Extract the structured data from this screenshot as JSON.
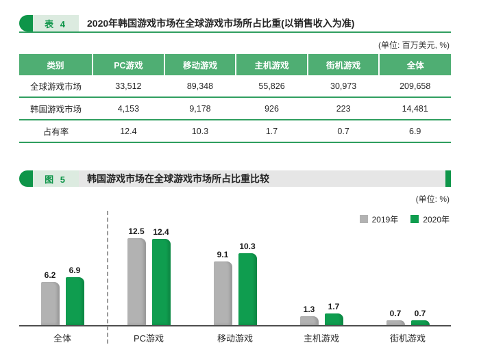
{
  "table_section": {
    "tag": "表 4",
    "title": "2020年韩国游戏市场在全球游戏市场所占比重(以销售收入为准)",
    "unit_label": "(单位: 百万美元, %)"
  },
  "figure_section": {
    "tag": "图 5",
    "title": "韩国游戏市场在全球游戏市场所占比重比较",
    "unit_label": "(单位: %)"
  },
  "colors": {
    "accent_green_dark": "#0e9549",
    "table_header_green": "#4fae73",
    "table_border_green": "#2f9e5f",
    "bar_green": "#0f9d4f",
    "bar_gray": "#b2b2b2",
    "figure_header_gray": "#e6e6e6",
    "tag_box_light_green": "#dcebe0"
  },
  "chart_data": [
    {
      "type": "table",
      "title": "2020年韩国游戏市场在全球游戏市场所占比重(以销售收入为准)",
      "unit": "百万美元, %",
      "columns": [
        "类别",
        "PC游戏",
        "移动游戏",
        "主机游戏",
        "街机游戏",
        "全体"
      ],
      "rows": [
        [
          "全球游戏市场",
          "33,512",
          "89,348",
          "55,826",
          "30,973",
          "209,658"
        ],
        [
          "韩国游戏市场",
          "4,153",
          "9,178",
          "926",
          "223",
          "14,481"
        ],
        [
          "占有率",
          "12.4",
          "10.3",
          "1.7",
          "0.7",
          "6.9"
        ]
      ]
    },
    {
      "type": "bar",
      "title": "韩国游戏市场在全球游戏市场所占比重比较",
      "unit": "%",
      "categories": [
        "全体",
        "PC游戏",
        "移动游戏",
        "主机游戏",
        "街机游戏"
      ],
      "series": [
        {
          "name": "2019年",
          "color": "#b2b2b2",
          "values": [
            6.2,
            12.5,
            9.1,
            1.3,
            0.7
          ]
        },
        {
          "name": "2020年",
          "color": "#0f9d4f",
          "values": [
            6.9,
            12.4,
            10.3,
            1.7,
            0.7
          ]
        }
      ],
      "ylim": [
        0,
        14
      ],
      "grid": false,
      "legend_position": "top-right",
      "group_divider_after_category": "全体"
    }
  ]
}
